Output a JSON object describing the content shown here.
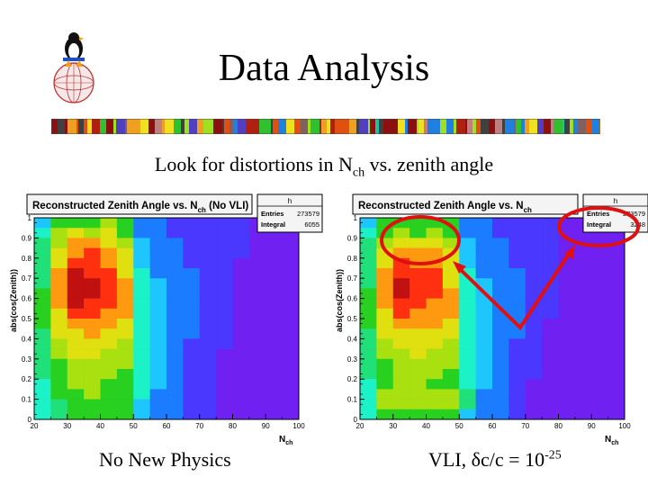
{
  "slide": {
    "title": "Data Analysis",
    "subtitle_pre": "Look for distortions in N",
    "subtitle_sub": "ch",
    "subtitle_post": " vs. zenith angle",
    "caption_left": "No New Physics",
    "caption_right_pre": "VLI, ",
    "caption_right_greek": "δ",
    "caption_right_mid": "c/c = 10",
    "caption_right_sup": "-25"
  },
  "colors": {
    "annotation": "#e01010",
    "frame_bg": "#7020f0",
    "palette": [
      "#7020f0",
      "#4a38ff",
      "#1c7cff",
      "#1ec6ff",
      "#1cf2c8",
      "#20e07a",
      "#28d020",
      "#a8e010",
      "#e0e010",
      "#ff9a10",
      "#ff3010",
      "#c01010"
    ]
  },
  "chart_data": [
    {
      "type": "heatmap",
      "title": "Reconstructed Zenith Angle vs. N",
      "title_sub": "ch",
      "title_suffix": "(No VLI)",
      "xlabel": "N",
      "xlabel_sub": "ch",
      "ylabel": "abs(cos(Zenith))",
      "x_ticks": [
        "20",
        "30",
        "40",
        "50",
        "60",
        "70",
        "80",
        "90",
        "100"
      ],
      "y_ticks": [
        "0",
        "0.1",
        "0.2",
        "0.3",
        "0.4",
        "0.5",
        "0.6",
        "0.7",
        "0.8",
        "0.9",
        "1"
      ],
      "xlim": [
        20,
        100
      ],
      "ylim": [
        0,
        1
      ],
      "stats": {
        "name": "h",
        "entries_label": "Entries",
        "entries": "273579",
        "integral_label": "Integral",
        "integral": "6055"
      },
      "grid": {
        "columns": 16,
        "rows": 20,
        "cells": [
          [
            3,
            6,
            6,
            6,
            7,
            6,
            2,
            2,
            1,
            1,
            1,
            1,
            1,
            0,
            0,
            0
          ],
          [
            4,
            7,
            8,
            7,
            8,
            6,
            2,
            2,
            1,
            1,
            1,
            1,
            1,
            0,
            0,
            0
          ],
          [
            5,
            7,
            9,
            9,
            8,
            7,
            3,
            2,
            2,
            1,
            1,
            1,
            1,
            0,
            0,
            0
          ],
          [
            5,
            8,
            9,
            10,
            9,
            8,
            3,
            2,
            2,
            1,
            1,
            1,
            1,
            0,
            0,
            0
          ],
          [
            5,
            8,
            10,
            10,
            9,
            8,
            3,
            2,
            2,
            1,
            1,
            1,
            0,
            0,
            0,
            0
          ],
          [
            5,
            9,
            11,
            10,
            10,
            8,
            4,
            2,
            2,
            2,
            1,
            1,
            0,
            0,
            0,
            0
          ],
          [
            5,
            9,
            11,
            11,
            10,
            9,
            4,
            3,
            2,
            2,
            1,
            1,
            0,
            0,
            0,
            0
          ],
          [
            6,
            9,
            11,
            11,
            10,
            9,
            4,
            3,
            2,
            2,
            1,
            1,
            0,
            0,
            0,
            0
          ],
          [
            6,
            9,
            11,
            10,
            10,
            9,
            4,
            3,
            2,
            2,
            1,
            1,
            0,
            0,
            0,
            0
          ],
          [
            6,
            8,
            10,
            10,
            9,
            9,
            4,
            3,
            2,
            2,
            1,
            1,
            0,
            0,
            0,
            0
          ],
          [
            6,
            8,
            9,
            9,
            9,
            8,
            4,
            3,
            2,
            2,
            1,
            1,
            0,
            0,
            0,
            0
          ],
          [
            5,
            8,
            8,
            9,
            8,
            8,
            4,
            3,
            2,
            2,
            1,
            1,
            0,
            0,
            0,
            0
          ],
          [
            5,
            7,
            8,
            8,
            8,
            7,
            4,
            3,
            2,
            1,
            1,
            1,
            0,
            0,
            0,
            0
          ],
          [
            5,
            7,
            8,
            8,
            7,
            7,
            4,
            3,
            2,
            1,
            1,
            0,
            0,
            0,
            0,
            0
          ],
          [
            5,
            6,
            7,
            7,
            7,
            7,
            4,
            3,
            2,
            1,
            1,
            0,
            0,
            0,
            0,
            0
          ],
          [
            5,
            6,
            7,
            7,
            7,
            6,
            4,
            3,
            2,
            1,
            1,
            0,
            0,
            0,
            0,
            0
          ],
          [
            4,
            6,
            7,
            7,
            6,
            6,
            4,
            3,
            2,
            1,
            1,
            0,
            0,
            0,
            0,
            0
          ],
          [
            4,
            6,
            6,
            7,
            6,
            6,
            4,
            2,
            2,
            1,
            1,
            0,
            0,
            0,
            0,
            0
          ],
          [
            4,
            5,
            6,
            6,
            6,
            6,
            3,
            2,
            2,
            1,
            1,
            0,
            0,
            0,
            0,
            0
          ],
          [
            4,
            5,
            6,
            6,
            6,
            6,
            3,
            2,
            2,
            1,
            1,
            0,
            0,
            0,
            0,
            0
          ]
        ]
      }
    },
    {
      "type": "heatmap",
      "title": "Reconstructed Zenith Angle vs. N",
      "title_sub": "ch",
      "title_suffix": "",
      "xlabel": "N",
      "xlabel_sub": "ch",
      "ylabel": "abs(cos(Zenith))",
      "x_ticks": [
        "20",
        "30",
        "40",
        "50",
        "60",
        "70",
        "80",
        "90",
        "100"
      ],
      "y_ticks": [
        "0",
        "0.1",
        "0.2",
        "0.3",
        "0.4",
        "0.5",
        "0.6",
        "0.7",
        "0.8",
        "0.9",
        "1"
      ],
      "xlim": [
        20,
        100
      ],
      "ylim": [
        0,
        1
      ],
      "stats": {
        "name": "h",
        "entries_label": "Entries",
        "entries": "273579",
        "integral_label": "Integral",
        "integral": "3248"
      },
      "grid": {
        "columns": 16,
        "rows": 20,
        "cells": [
          [
            3,
            6,
            6,
            6,
            6,
            6,
            2,
            2,
            1,
            1,
            1,
            1,
            0,
            0,
            0,
            0
          ],
          [
            4,
            6,
            7,
            6,
            7,
            6,
            2,
            2,
            1,
            1,
            1,
            1,
            0,
            0,
            0,
            0
          ],
          [
            5,
            7,
            8,
            8,
            8,
            7,
            3,
            2,
            2,
            1,
            1,
            1,
            0,
            0,
            0,
            0
          ],
          [
            5,
            8,
            9,
            9,
            9,
            8,
            3,
            2,
            2,
            1,
            1,
            1,
            0,
            0,
            0,
            0
          ],
          [
            5,
            8,
            10,
            9,
            9,
            8,
            3,
            2,
            2,
            1,
            1,
            1,
            0,
            0,
            0,
            0
          ],
          [
            5,
            9,
            10,
            10,
            10,
            8,
            4,
            2,
            2,
            2,
            1,
            1,
            0,
            0,
            0,
            0
          ],
          [
            5,
            9,
            11,
            10,
            10,
            8,
            4,
            3,
            2,
            2,
            1,
            1,
            0,
            0,
            0,
            0
          ],
          [
            6,
            9,
            11,
            10,
            10,
            9,
            4,
            3,
            2,
            2,
            1,
            1,
            0,
            0,
            0,
            0
          ],
          [
            6,
            9,
            10,
            10,
            9,
            9,
            4,
            3,
            2,
            2,
            1,
            1,
            0,
            0,
            0,
            0
          ],
          [
            6,
            8,
            10,
            9,
            9,
            9,
            4,
            3,
            2,
            2,
            1,
            1,
            0,
            0,
            0,
            0
          ],
          [
            6,
            8,
            9,
            9,
            9,
            8,
            4,
            3,
            2,
            2,
            1,
            0,
            0,
            0,
            0,
            0
          ],
          [
            5,
            8,
            8,
            8,
            8,
            8,
            4,
            3,
            2,
            2,
            1,
            0,
            0,
            0,
            0,
            0
          ],
          [
            5,
            7,
            8,
            8,
            8,
            7,
            4,
            3,
            2,
            1,
            1,
            0,
            0,
            0,
            0,
            0
          ],
          [
            5,
            7,
            7,
            8,
            7,
            7,
            4,
            3,
            2,
            1,
            1,
            0,
            0,
            0,
            0,
            0
          ],
          [
            5,
            6,
            7,
            7,
            7,
            7,
            4,
            3,
            2,
            1,
            1,
            0,
            0,
            0,
            0,
            0
          ],
          [
            5,
            6,
            7,
            7,
            7,
            6,
            4,
            3,
            2,
            1,
            1,
            0,
            0,
            0,
            0,
            0
          ],
          [
            4,
            6,
            7,
            7,
            6,
            6,
            4,
            3,
            2,
            1,
            0,
            0,
            0,
            0,
            0,
            0
          ],
          [
            4,
            7,
            7,
            7,
            7,
            7,
            5,
            2,
            2,
            1,
            0,
            0,
            0,
            0,
            0,
            0
          ],
          [
            4,
            7,
            7,
            7,
            7,
            7,
            5,
            2,
            2,
            1,
            0,
            0,
            0,
            0,
            0,
            0
          ],
          [
            4,
            6,
            6,
            6,
            6,
            6,
            3,
            2,
            2,
            1,
            0,
            0,
            0,
            0,
            0,
            0
          ]
        ]
      }
    }
  ]
}
